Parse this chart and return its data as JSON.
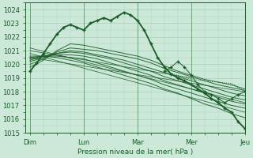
{
  "xlabel": "Pression niveau de la mer( hPa )",
  "x_labels": [
    "Dim",
    "Lun",
    "Mar",
    "Mer",
    "Jeu"
  ],
  "x_positions": [
    0,
    24,
    48,
    72,
    96
  ],
  "ylim": [
    1015,
    1024.5
  ],
  "xlim": [
    -2,
    96
  ],
  "yticks": [
    1015,
    1016,
    1017,
    1018,
    1019,
    1020,
    1021,
    1022,
    1023,
    1024
  ],
  "bg_color": "#cce8d8",
  "grid_color": "#aad0be",
  "line_color": "#1a5c28",
  "lw_thin": 0.7,
  "lw_main": 1.3,
  "ensemble_lines": [
    {
      "x": [
        0,
        6,
        12,
        18,
        24,
        30,
        36,
        42,
        48,
        54,
        60,
        66,
        72,
        78,
        84,
        90,
        96
      ],
      "y": [
        1019.8,
        1020.3,
        1021.0,
        1021.5,
        1021.4,
        1021.2,
        1021.0,
        1020.8,
        1020.6,
        1020.3,
        1019.9,
        1019.5,
        1019.2,
        1018.9,
        1018.7,
        1018.5,
        1018.2
      ]
    },
    {
      "x": [
        0,
        6,
        12,
        18,
        24,
        30,
        36,
        42,
        48,
        54,
        60,
        66,
        72,
        78,
        84,
        90,
        96
      ],
      "y": [
        1020.0,
        1020.4,
        1020.9,
        1021.2,
        1021.1,
        1021.0,
        1020.8,
        1020.6,
        1020.4,
        1020.1,
        1019.7,
        1019.4,
        1019.1,
        1018.8,
        1018.5,
        1018.3,
        1018.1
      ]
    },
    {
      "x": [
        0,
        6,
        12,
        18,
        24,
        30,
        36,
        42,
        48,
        54,
        60,
        66,
        72,
        78,
        84,
        90,
        96
      ],
      "y": [
        1020.2,
        1020.5,
        1020.8,
        1021.0,
        1020.9,
        1020.7,
        1020.5,
        1020.3,
        1020.0,
        1019.7,
        1019.4,
        1019.1,
        1018.8,
        1018.5,
        1018.2,
        1017.9,
        1017.7
      ]
    },
    {
      "x": [
        0,
        6,
        12,
        18,
        24,
        30,
        36,
        42,
        48,
        54,
        60,
        66,
        72,
        78,
        84,
        90,
        96
      ],
      "y": [
        1020.3,
        1020.6,
        1020.8,
        1020.9,
        1020.8,
        1020.6,
        1020.4,
        1020.1,
        1019.8,
        1019.5,
        1019.1,
        1018.8,
        1018.5,
        1018.2,
        1017.9,
        1017.6,
        1017.4
      ]
    },
    {
      "x": [
        0,
        6,
        12,
        18,
        24,
        30,
        36,
        42,
        48,
        54,
        60,
        66,
        72,
        78,
        84,
        90,
        96
      ],
      "y": [
        1020.4,
        1020.6,
        1020.7,
        1020.7,
        1020.6,
        1020.4,
        1020.1,
        1019.8,
        1019.5,
        1019.2,
        1018.8,
        1018.5,
        1018.2,
        1017.9,
        1017.6,
        1017.3,
        1017.1
      ]
    },
    {
      "x": [
        0,
        6,
        12,
        18,
        24,
        30,
        36,
        42,
        48,
        54,
        60,
        66,
        72,
        78,
        84,
        90,
        96
      ],
      "y": [
        1020.5,
        1020.6,
        1020.6,
        1020.5,
        1020.4,
        1020.1,
        1019.8,
        1019.5,
        1019.2,
        1018.9,
        1018.5,
        1018.2,
        1017.9,
        1017.6,
        1017.3,
        1017.0,
        1016.8
      ]
    },
    {
      "x": [
        0,
        6,
        12,
        18,
        24,
        30,
        36,
        42,
        48,
        54,
        60,
        66,
        72,
        78,
        84,
        90,
        96
      ],
      "y": [
        1020.6,
        1020.6,
        1020.5,
        1020.3,
        1020.1,
        1019.8,
        1019.5,
        1019.2,
        1018.9,
        1018.6,
        1018.2,
        1017.9,
        1017.5,
        1017.1,
        1016.8,
        1016.4,
        1016.1
      ]
    }
  ],
  "main_line": {
    "x": [
      0,
      3,
      6,
      9,
      12,
      15,
      18,
      21,
      24,
      27,
      30,
      33,
      36,
      39,
      42,
      45,
      48,
      51,
      54,
      57,
      60,
      63,
      66,
      69,
      72,
      75,
      78,
      81,
      84,
      87,
      90,
      93,
      96
    ],
    "y": [
      1019.5,
      1020.1,
      1020.8,
      1021.5,
      1022.2,
      1022.7,
      1022.9,
      1022.7,
      1022.5,
      1023.0,
      1023.2,
      1023.4,
      1023.2,
      1023.5,
      1023.8,
      1023.6,
      1023.2,
      1022.5,
      1021.5,
      1020.5,
      1019.8,
      1019.3,
      1019.0,
      1018.8,
      1018.5,
      1018.2,
      1017.9,
      1017.5,
      1017.2,
      1016.8,
      1016.5,
      1015.8,
      1015.3
    ]
  },
  "straight_lines": [
    {
      "x": [
        0,
        96
      ],
      "y": [
        1020.5,
        1018.0
      ]
    },
    {
      "x": [
        0,
        96
      ],
      "y": [
        1020.8,
        1016.5
      ]
    },
    {
      "x": [
        0,
        72
      ],
      "y": [
        1021.0,
        1019.0
      ]
    },
    {
      "x": [
        0,
        96
      ],
      "y": [
        1021.2,
        1017.2
      ]
    }
  ],
  "dotted_line": {
    "x": [
      60,
      66,
      72,
      78,
      84,
      90,
      96
    ],
    "y": [
      1019.5,
      1019.2,
      1018.9,
      1018.8,
      1018.7,
      1018.6,
      1018.0
    ]
  },
  "loop_line": {
    "x": [
      60,
      63,
      66,
      69,
      72,
      75,
      78,
      81,
      84,
      87,
      90,
      93,
      96
    ],
    "y": [
      1019.5,
      1019.8,
      1020.2,
      1019.8,
      1019.2,
      1018.5,
      1018.0,
      1017.8,
      1017.5,
      1017.2,
      1017.5,
      1017.8,
      1018.0
    ]
  }
}
